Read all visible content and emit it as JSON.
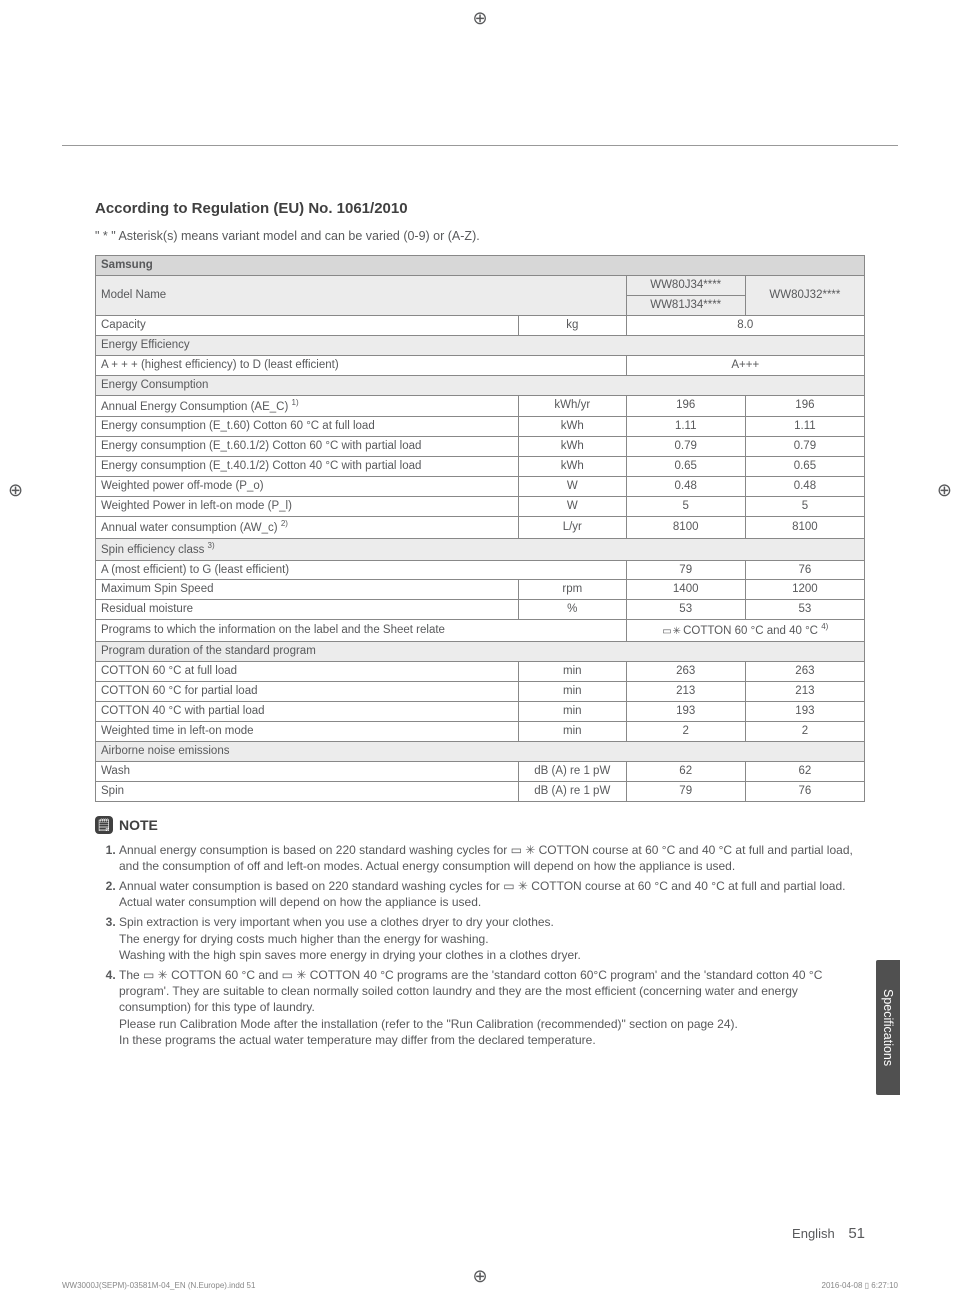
{
  "heading": "According to Regulation (EU) No. 1061/2010",
  "subhead": "\" * \" Asterisk(s) means variant model and can be varied (0-9) or (A-Z).",
  "brand": "Samsung",
  "model_name_label": "Model Name",
  "model_col1": "WW80J34****\nWW81J34****",
  "model_col2": "WW80J32****",
  "rows": {
    "capacity": "Capacity",
    "capacity_u": "kg",
    "capacity_v": "8.0",
    "ee_hdr": "Energy Efficiency",
    "ee_scale": "A + + + (highest efficiency) to D (least efficient)",
    "ee_v": "A+++",
    "ec_hdr": "Energy Consumption",
    "aec": "Annual Energy Consumption (AE_C) ",
    "aec_u": "kWh/yr",
    "aec_1": "196",
    "aec_2": "196",
    "et60": "Energy consumption (E_t.60) Cotton 60 °C at full load",
    "et60_u": "kWh",
    "et60_1": "1.11",
    "et60_2": "1.11",
    "et60h": "Energy consumption (E_t.60.1/2) Cotton 60 °C with partial load",
    "et60h_u": "kWh",
    "et60h_1": "0.79",
    "et60h_2": "0.79",
    "et40h": "Energy consumption (E_t.40.1/2) Cotton 40 °C with partial load",
    "et40h_u": "kWh",
    "et40h_1": "0.65",
    "et40h_2": "0.65",
    "po": "Weighted power off-mode (P_o)",
    "po_u": "W",
    "po_1": "0.48",
    "po_2": "0.48",
    "pl": "Weighted Power in left-on mode (P_l)",
    "pl_u": "W",
    "pl_1": "5",
    "pl_2": "5",
    "awc": "Annual water consumption (AW_c) ",
    "awc_u": "L/yr",
    "awc_1": "8100",
    "awc_2": "8100",
    "spin_hdr": "Spin efficiency class ",
    "spin_scale": "A (most efficient) to G (least efficient)",
    "spin_1": "79",
    "spin_2": "76",
    "maxspin": "Maximum Spin Speed",
    "maxspin_u": "rpm",
    "maxspin_1": "1400",
    "maxspin_2": "1200",
    "resid": "Residual moisture",
    "resid_u": "%",
    "resid_1": "53",
    "resid_2": "53",
    "progrel": "Programs to which the information on the label and the Sheet relate",
    "progrel_v": " COTTON 60 °C and 40 °C ",
    "progdur_hdr": "Program duration of the standard program",
    "c60f": "COTTON 60 °C at full load",
    "c60f_u": "min",
    "c60f_1": "263",
    "c60f_2": "263",
    "c60p": "COTTON 60 °C for partial load",
    "c60p_u": "min",
    "c60p_1": "213",
    "c60p_2": "213",
    "c40p": "COTTON 40 °C with partial load",
    "c40p_u": "min",
    "c40p_1": "193",
    "c40p_2": "193",
    "wtime": "Weighted time in left-on mode",
    "wtime_u": "min",
    "wtime_1": "2",
    "wtime_2": "2",
    "noise_hdr": "Airborne noise emissions",
    "wash": "Wash",
    "wash_u": "dB (A) re 1 pW",
    "wash_1": "62",
    "wash_2": "62",
    "spin": "Spin",
    "spin_u": "dB (A) re 1 pW"
  },
  "note_label": "NOTE",
  "notes": [
    "Annual energy consumption is based on 220 standard washing cycles for ▭ ✳ COTTON course at 60 °C and 40 °C at full and partial load, and the consumption of off and left-on modes. Actual energy consumption will depend on how the appliance is used.",
    "Annual water consumption is based on 220 standard washing cycles for ▭ ✳ COTTON course at 60 °C and 40 °C at full and partial load. Actual water consumption will depend on how the appliance is used.",
    "Spin extraction is very important when you use a clothes dryer to dry your clothes.\nThe energy for drying costs much higher than the energy for washing.\nWashing with the high spin saves more energy in drying your clothes in a clothes dryer.",
    "The ▭ ✳ COTTON 60 °C and ▭ ✳ COTTON 40 °C programs are the 'standard cotton 60°C program' and the 'standard cotton 40 °C program'. They are suitable to clean normally soiled cotton laundry and they are the most efficient (concerning water and energy consumption) for this type of laundry.\nPlease run Calibration Mode after the installation (refer to the \"Run Calibration (recommended)\" section on page 24).\nIn these programs the actual water temperature may differ from the declared temperature."
  ],
  "side_tab": "Specifications",
  "footer_lang": "English",
  "footer_page": "51",
  "filefoot": "WW3000J(SEPM)-03581M-04_EN (N.Europe).indd   51",
  "filefoot_r": "2016-04-08   ▯ 6:27:10"
}
